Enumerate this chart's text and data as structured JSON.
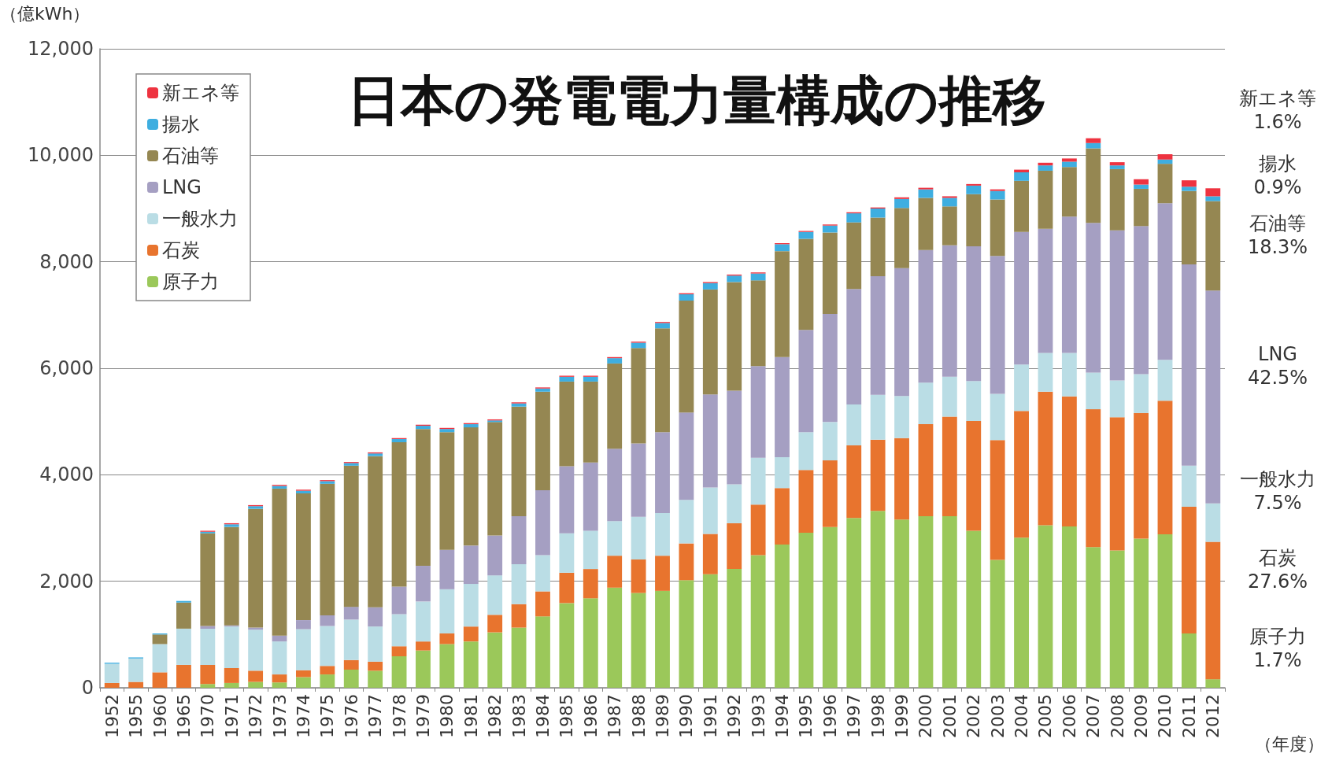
{
  "chart_data": {
    "type": "bar",
    "stacked": true,
    "title": "日本の発電電力量構成の推移",
    "ylabel": "（億kWh）",
    "xlabel": "（年度）",
    "categories": [
      "1952",
      "1955",
      "1960",
      "1965",
      "1970",
      "1971",
      "1972",
      "1973",
      "1974",
      "1975",
      "1976",
      "1977",
      "1978",
      "1979",
      "1980",
      "1981",
      "1982",
      "1983",
      "1984",
      "1985",
      "1986",
      "1987",
      "1988",
      "1989",
      "1990",
      "1991",
      "1992",
      "1993",
      "1994",
      "1995",
      "1996",
      "1997",
      "1998",
      "1999",
      "2000",
      "2001",
      "2002",
      "2003",
      "2004",
      "2005",
      "2006",
      "2007",
      "2008",
      "2009",
      "2010",
      "2011",
      "2012"
    ],
    "series": [
      {
        "name": "原子力",
        "color": "#9bc85a",
        "values": [
          0,
          0,
          0,
          0,
          70,
          90,
          110,
          100,
          200,
          250,
          340,
          320,
          590,
          700,
          820,
          870,
          1040,
          1130,
          1340,
          1590,
          1680,
          1880,
          1780,
          1820,
          2020,
          2130,
          2230,
          2490,
          2690,
          2910,
          3020,
          3190,
          3320,
          3160,
          3220,
          3220,
          2950,
          2400,
          2820,
          3050,
          3030,
          2640,
          2580,
          2800,
          2880,
          1020,
          160
        ]
      },
      {
        "name": "石炭",
        "color": "#e8742e",
        "values": [
          90,
          110,
          290,
          430,
          360,
          280,
          210,
          150,
          130,
          160,
          180,
          170,
          190,
          170,
          200,
          280,
          330,
          440,
          470,
          570,
          550,
          600,
          630,
          660,
          690,
          760,
          860,
          950,
          1060,
          1180,
          1250,
          1360,
          1340,
          1530,
          1730,
          1870,
          2060,
          2250,
          2380,
          2510,
          2440,
          2590,
          2500,
          2360,
          2510,
          2380,
          2580
        ]
      },
      {
        "name": "一般水力",
        "color": "#badde5",
        "values": [
          360,
          440,
          530,
          680,
          680,
          780,
          770,
          620,
          770,
          750,
          760,
          660,
          600,
          750,
          830,
          800,
          740,
          750,
          680,
          740,
          720,
          650,
          800,
          800,
          820,
          870,
          730,
          880,
          580,
          710,
          720,
          770,
          840,
          790,
          780,
          750,
          750,
          870,
          870,
          730,
          820,
          690,
          690,
          730,
          770,
          770,
          720
        ]
      },
      {
        "name": "LNG",
        "color": "#a59fc2",
        "values": [
          0,
          0,
          0,
          0,
          50,
          20,
          40,
          110,
          170,
          200,
          240,
          360,
          520,
          670,
          740,
          720,
          750,
          900,
          1220,
          1260,
          1280,
          1360,
          1380,
          1520,
          1640,
          1750,
          1760,
          1720,
          1880,
          1920,
          2030,
          2170,
          2230,
          2400,
          2490,
          2470,
          2530,
          2590,
          2490,
          2330,
          2560,
          2810,
          2820,
          2780,
          2940,
          3780,
          4000
        ]
      },
      {
        "name": "石油等",
        "color": "#958752",
        "values": [
          0,
          0,
          180,
          490,
          1740,
          1850,
          2230,
          2760,
          2380,
          2470,
          2650,
          2840,
          2710,
          2570,
          2210,
          2220,
          2130,
          2060,
          1850,
          1590,
          1520,
          1600,
          1790,
          1950,
          2100,
          1970,
          2040,
          1610,
          1990,
          1710,
          1530,
          1250,
          1100,
          1130,
          980,
          730,
          980,
          1060,
          960,
          1090,
          930,
          1400,
          1150,
          700,
          740,
          1380,
          1680
        ]
      },
      {
        "name": "揚水",
        "color": "#3eaee0",
        "values": [
          20,
          20,
          20,
          30,
          30,
          50,
          50,
          50,
          50,
          50,
          50,
          50,
          60,
          60,
          60,
          60,
          30,
          60,
          60,
          90,
          90,
          100,
          100,
          100,
          120,
          120,
          120,
          130,
          130,
          130,
          130,
          170,
          170,
          170,
          160,
          160,
          160,
          160,
          160,
          100,
          100,
          100,
          70,
          80,
          80,
          80,
          90
        ]
      },
      {
        "name": "新エネ等",
        "color": "#ee3340",
        "values": [
          0,
          0,
          0,
          0,
          20,
          20,
          20,
          20,
          20,
          20,
          20,
          20,
          20,
          20,
          20,
          20,
          20,
          20,
          20,
          20,
          20,
          20,
          20,
          20,
          20,
          20,
          20,
          20,
          20,
          20,
          20,
          20,
          20,
          30,
          30,
          30,
          30,
          30,
          50,
          50,
          60,
          90,
          60,
          100,
          100,
          120,
          150
        ]
      }
    ],
    "ylim": [
      0,
      12000
    ],
    "yticks": [
      0,
      {
        "value": 2000,
        "label": "2,000"
      },
      {
        "value": 4000,
        "label": "4,000"
      },
      {
        "value": 6000,
        "label": "6,000"
      },
      {
        "value": 8000,
        "label": "8,000"
      },
      {
        "value": 10000,
        "label": "10,000"
      },
      {
        "value": 12000,
        "label": "12,000"
      }
    ],
    "grid": "y",
    "legend": "top left",
    "annotations": [
      "新エネ等\n1.6%",
      "揚水\n0.9%",
      "石油等\n18.3%",
      "LNG\n42.5%",
      "一般水力\n7.5%",
      "石炭\n27.6%",
      "原子力\n1.7%"
    ]
  }
}
